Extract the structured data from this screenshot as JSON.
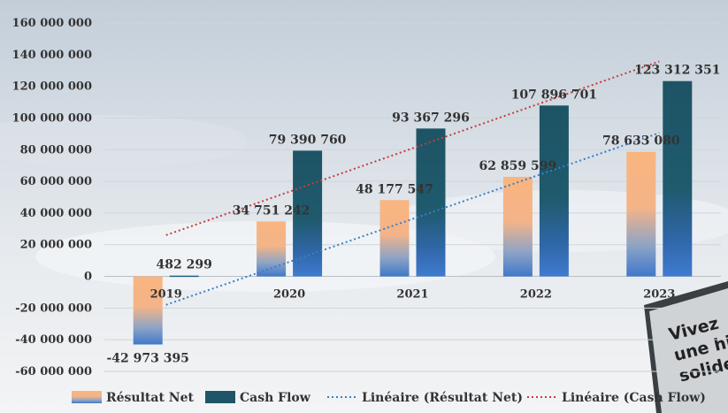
{
  "chart_data": {
    "type": "bar",
    "categories": [
      "2019",
      "2020",
      "2021",
      "2022",
      "2023"
    ],
    "series": [
      {
        "name": "Résultat Net",
        "values": [
          -42973395,
          34751242,
          48177547,
          62859599,
          78633080
        ],
        "labels": [
          "-42 973 395",
          "34 751 242",
          "48 177 547",
          "62 859 599",
          "78 633 080"
        ],
        "color": "#f7b07a"
      },
      {
        "name": "Cash Flow",
        "values": [
          482299,
          79390760,
          93367296,
          107896701,
          123312351
        ],
        "labels": [
          "482 299",
          "79 390 760",
          "93 367 296",
          "107 896 701",
          "123 312 351"
        ],
        "color": "#1e5667"
      }
    ],
    "trendlines": [
      {
        "name": "Linéaire (Résultat Net)",
        "series": "Résultat Net",
        "color": "#3a7fc4"
      },
      {
        "name": "Linéaire (Cash Flow)",
        "series": "Cash Flow",
        "color": "#c83c3c"
      }
    ],
    "y_ticks": [
      "160 000 000",
      "140 000 000",
      "120 000 000",
      "100 000 000",
      "80 000 000",
      "60 000 000",
      "40 000 000",
      "20 000 000",
      "0",
      "-20 000 000",
      "-40 000 000",
      "-60 000 000"
    ],
    "y_tick_values": [
      160000000,
      140000000,
      120000000,
      100000000,
      80000000,
      60000000,
      40000000,
      20000000,
      0,
      -20000000,
      -40000000,
      -60000000
    ],
    "ylim": [
      -60000000,
      160000000
    ],
    "grid": true,
    "legend_position": "bottom",
    "title": "",
    "xlabel": "",
    "ylabel": ""
  },
  "background": {
    "sign_lines": [
      "Vivez",
      "une his",
      "solide"
    ]
  }
}
